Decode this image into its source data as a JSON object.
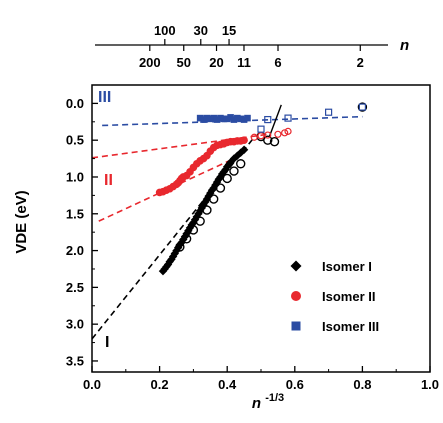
{
  "chart_data": {
    "type": "scatter",
    "xlabel": "n",
    "xlabel_superscript": "-1/3",
    "ylabel": "VDE  (eV)",
    "xlim": [
      0.0,
      1.0
    ],
    "ylim": [
      3.65,
      -0.25
    ],
    "y_inverted": true,
    "x_ticks": [
      "0.0",
      "0.2",
      "0.4",
      "0.6",
      "0.8",
      "1.0"
    ],
    "x_tick_values": [
      0.0,
      0.2,
      0.4,
      0.6,
      0.8,
      1.0
    ],
    "y_ticks": [
      "0.0",
      "0.5",
      "1.0",
      "1.5",
      "2.0",
      "2.5",
      "3.0",
      "3.5"
    ],
    "y_tick_values": [
      0.0,
      0.5,
      1.0,
      1.5,
      2.0,
      2.5,
      3.0,
      3.5
    ],
    "top_axis": {
      "label": "n",
      "upper_ticks": [
        100,
        30,
        15
      ],
      "lower_ticks": [
        200,
        50,
        20,
        11,
        6,
        2
      ]
    },
    "legend": {
      "placement": "lower-right",
      "entries": [
        "Isomer I",
        "Isomer II",
        "Isomer III"
      ]
    },
    "region_labels": {
      "I": "I",
      "II": "II",
      "III": "III"
    },
    "colors": {
      "I": "#000000",
      "II": "#e8282e",
      "III": "#2b4ca3"
    },
    "series": [
      {
        "name": "Isomer I",
        "color": "#000000",
        "filled": [
          [
            0.21,
            2.28
          ],
          [
            0.215,
            2.25
          ],
          [
            0.22,
            2.22
          ],
          [
            0.225,
            2.19
          ],
          [
            0.23,
            2.15
          ],
          [
            0.235,
            2.12
          ],
          [
            0.24,
            2.08
          ],
          [
            0.245,
            2.04
          ],
          [
            0.25,
            2.0
          ],
          [
            0.255,
            1.96
          ],
          [
            0.26,
            1.92
          ],
          [
            0.265,
            1.89
          ],
          [
            0.27,
            1.85
          ],
          [
            0.275,
            1.81
          ],
          [
            0.28,
            1.77
          ],
          [
            0.285,
            1.73
          ],
          [
            0.29,
            1.69
          ],
          [
            0.295,
            1.65
          ],
          [
            0.3,
            1.62
          ],
          [
            0.305,
            1.58
          ],
          [
            0.31,
            1.54
          ],
          [
            0.315,
            1.5
          ],
          [
            0.32,
            1.46
          ],
          [
            0.325,
            1.42
          ],
          [
            0.33,
            1.38
          ],
          [
            0.335,
            1.34
          ],
          [
            0.34,
            1.3
          ],
          [
            0.345,
            1.26
          ],
          [
            0.35,
            1.22
          ],
          [
            0.355,
            1.18
          ],
          [
            0.36,
            1.15
          ],
          [
            0.365,
            1.11
          ],
          [
            0.37,
            1.07
          ],
          [
            0.375,
            1.03
          ],
          [
            0.38,
            1.0
          ],
          [
            0.385,
            0.96
          ],
          [
            0.39,
            0.93
          ],
          [
            0.395,
            0.9
          ],
          [
            0.4,
            0.86
          ],
          [
            0.405,
            0.83
          ],
          [
            0.41,
            0.8
          ],
          [
            0.42,
            0.75
          ],
          [
            0.43,
            0.71
          ],
          [
            0.44,
            0.67
          ],
          [
            0.45,
            0.63
          ]
        ],
        "open": [
          [
            0.26,
            1.95
          ],
          [
            0.28,
            1.84
          ],
          [
            0.3,
            1.72
          ],
          [
            0.32,
            1.6
          ],
          [
            0.34,
            1.45
          ],
          [
            0.36,
            1.3
          ],
          [
            0.38,
            1.15
          ],
          [
            0.4,
            1.02
          ],
          [
            0.42,
            0.92
          ],
          [
            0.44,
            0.82
          ],
          [
            0.5,
            0.45
          ],
          [
            0.52,
            0.5
          ],
          [
            0.54,
            0.52
          ],
          [
            0.8,
            0.05
          ]
        ],
        "fit": {
          "x": [
            0.0,
            0.48
          ],
          "y": [
            3.2,
            0.46
          ]
        }
      },
      {
        "name": "Isomer II",
        "color": "#e8282e",
        "filled": [
          [
            0.2,
            1.21
          ],
          [
            0.21,
            1.2
          ],
          [
            0.22,
            1.18
          ],
          [
            0.23,
            1.16
          ],
          [
            0.24,
            1.13
          ],
          [
            0.25,
            1.1
          ],
          [
            0.255,
            1.08
          ],
          [
            0.26,
            1.05
          ],
          [
            0.265,
            1.02
          ],
          [
            0.27,
            1.0
          ],
          [
            0.28,
            0.98
          ],
          [
            0.29,
            0.93
          ],
          [
            0.3,
            0.87
          ],
          [
            0.31,
            0.82
          ],
          [
            0.32,
            0.78
          ],
          [
            0.33,
            0.75
          ],
          [
            0.34,
            0.71
          ],
          [
            0.35,
            0.65
          ],
          [
            0.36,
            0.6
          ],
          [
            0.37,
            0.57
          ],
          [
            0.38,
            0.56
          ],
          [
            0.39,
            0.55
          ],
          [
            0.4,
            0.53
          ],
          [
            0.41,
            0.52
          ],
          [
            0.42,
            0.52
          ],
          [
            0.43,
            0.51
          ],
          [
            0.44,
            0.51
          ],
          [
            0.45,
            0.5
          ]
        ],
        "open": [
          [
            0.48,
            0.46
          ],
          [
            0.5,
            0.44
          ],
          [
            0.52,
            0.43
          ],
          [
            0.55,
            0.42
          ],
          [
            0.57,
            0.4
          ],
          [
            0.58,
            0.38
          ]
        ],
        "fit_upper": {
          "x": [
            0.0,
            0.52
          ],
          "y": [
            0.74,
            0.42
          ]
        },
        "fit_lower": {
          "x": [
            0.02,
            0.42
          ],
          "y": [
            1.6,
            0.75
          ]
        }
      },
      {
        "name": "Isomer III",
        "color": "#2b4ca3",
        "filled": [
          [
            0.32,
            0.2
          ],
          [
            0.33,
            0.22
          ],
          [
            0.34,
            0.2
          ],
          [
            0.35,
            0.21
          ],
          [
            0.36,
            0.2
          ],
          [
            0.37,
            0.22
          ],
          [
            0.38,
            0.2
          ],
          [
            0.39,
            0.21
          ],
          [
            0.4,
            0.21
          ],
          [
            0.41,
            0.19
          ],
          [
            0.42,
            0.22
          ],
          [
            0.43,
            0.2
          ],
          [
            0.44,
            0.21
          ],
          [
            0.45,
            0.22
          ],
          [
            0.46,
            0.2
          ]
        ],
        "open": [
          [
            0.5,
            0.35
          ],
          [
            0.52,
            0.22
          ],
          [
            0.58,
            0.2
          ],
          [
            0.7,
            0.12
          ],
          [
            0.8,
            0.05
          ]
        ],
        "fit": {
          "x": [
            0.03,
            0.8
          ],
          "y": [
            0.3,
            0.18
          ]
        }
      }
    ]
  }
}
